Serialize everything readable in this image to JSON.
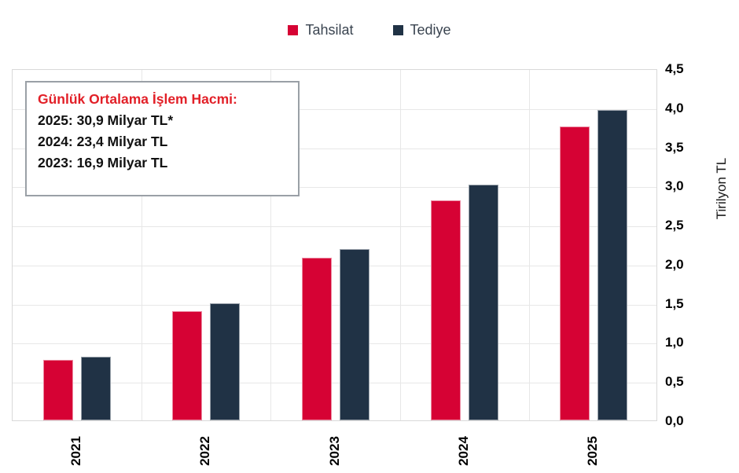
{
  "chart_data": {
    "type": "bar",
    "title": "",
    "categories": [
      "2021",
      "2022",
      "2023",
      "2024",
      "2025"
    ],
    "series": [
      {
        "name": "Tahsilat",
        "color": "#d60234",
        "values": [
          0.77,
          1.4,
          2.08,
          2.81,
          3.76
        ]
      },
      {
        "name": "Tediye",
        "color": "#203245",
        "values": [
          0.81,
          1.5,
          2.19,
          3.01,
          3.97
        ]
      }
    ],
    "xlabel": "",
    "ylabel": "Tirilyon TL",
    "ylim": [
      0,
      4.5
    ],
    "ytick_step": 0.5,
    "ytick_labels": [
      "0,0",
      "0,5",
      "1,0",
      "1,5",
      "2,0",
      "2,5",
      "3,0",
      "3,5",
      "4,0",
      "4,5"
    ],
    "decimal_separator": ",",
    "grid": true,
    "legend_position": "top-center",
    "x_label_rotation": -90,
    "annotation": {
      "title": "Günlük Ortalama İşlem Hacmi:",
      "title_color": "#e22028",
      "lines": [
        "2025: 30,9 Milyar TL*",
        "2024: 23,4 Milyar TL",
        "2023: 16,9 Milyar TL"
      ]
    }
  }
}
